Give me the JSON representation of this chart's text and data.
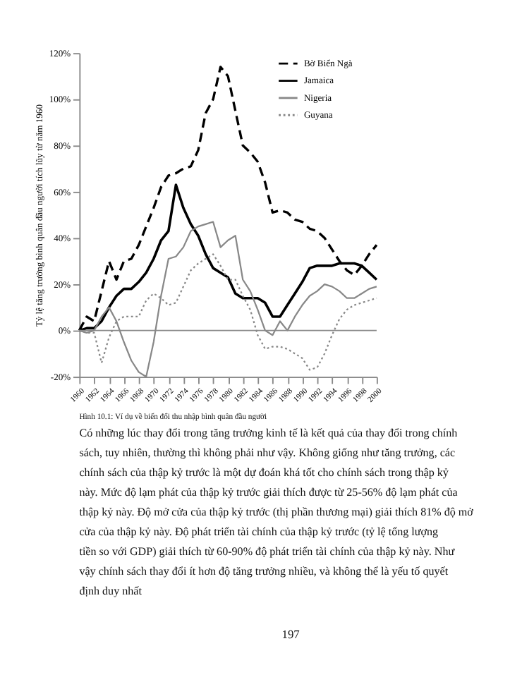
{
  "chart_data": {
    "type": "line",
    "ylabel": "Tỷ lệ tăng trưởng bình quân đầu người tích lũy từ năm 1960",
    "x": [
      1960,
      1961,
      1962,
      1963,
      1964,
      1965,
      1966,
      1967,
      1968,
      1969,
      1970,
      1971,
      1972,
      1973,
      1974,
      1975,
      1976,
      1977,
      1978,
      1979,
      1980,
      1981,
      1982,
      1983,
      1984,
      1985,
      1986,
      1987,
      1988,
      1989,
      1990,
      1991,
      1992,
      1993,
      1994,
      1995,
      1996,
      1997,
      1998,
      1999,
      2000
    ],
    "series": [
      {
        "name": "Bờ Biển Ngà",
        "color": "#000000",
        "line_style": "dashed",
        "values": [
          0,
          6,
          4,
          17,
          30,
          22,
          30,
          31,
          37,
          45,
          53,
          62,
          67,
          68,
          70,
          71,
          78,
          94,
          100,
          114,
          110,
          95,
          80,
          77,
          73,
          64,
          51,
          52,
          51,
          48,
          47,
          44,
          43,
          40,
          35,
          30,
          26,
          24,
          28,
          33,
          37
        ]
      },
      {
        "name": "Jamaica",
        "color": "#000000",
        "line_style": "solid",
        "values": [
          0,
          1,
          1,
          4,
          10,
          15,
          18,
          18,
          21,
          25,
          31,
          39,
          43,
          63,
          53,
          46,
          41,
          33,
          27,
          25,
          23,
          16,
          14,
          14,
          14,
          12,
          6,
          6,
          11,
          16,
          21,
          27,
          28,
          28,
          28,
          29,
          29,
          29,
          28,
          25,
          22
        ]
      },
      {
        "name": "Nigeria",
        "color": "#888888",
        "line_style": "solid",
        "values": [
          0,
          -1,
          0,
          6,
          10,
          4,
          -5,
          -13,
          -18,
          -20,
          -5,
          15,
          31,
          32,
          36,
          43,
          45,
          46,
          47,
          36,
          39,
          41,
          22,
          17,
          9,
          0,
          -2,
          4,
          0,
          6,
          11,
          15,
          17,
          20,
          19,
          17,
          14,
          14,
          16,
          18,
          19
        ]
      },
      {
        "name": "Guyana",
        "color": "#888888",
        "line_style": "dotted",
        "values": [
          0,
          -1,
          -1,
          -14,
          -3,
          4,
          6,
          6,
          6,
          13,
          16,
          14,
          11,
          12,
          19,
          26,
          29,
          31,
          33,
          28,
          22,
          22,
          15,
          9,
          -2,
          -8,
          -7,
          -7,
          -8,
          -10,
          -12,
          -17,
          -16,
          -10,
          -2,
          5,
          9,
          11,
          12,
          13,
          14
        ]
      }
    ],
    "xlim": [
      1960,
      2000
    ],
    "xticks": [
      1960,
      1962,
      1964,
      1966,
      1968,
      1970,
      1972,
      1974,
      1976,
      1978,
      1980,
      1982,
      1984,
      1986,
      1988,
      1990,
      1992,
      1994,
      1996,
      1998,
      2000
    ],
    "ylim": [
      -20,
      120
    ],
    "yticks": [
      {
        "value": -20,
        "label": "-20%"
      },
      {
        "value": 0,
        "label": "0%"
      },
      {
        "value": 20,
        "label": "20%"
      },
      {
        "value": 40,
        "label": "40%"
      },
      {
        "value": 60,
        "label": "60%"
      },
      {
        "value": 80,
        "label": "80%"
      },
      {
        "value": 100,
        "label": "100%"
      },
      {
        "value": 120,
        "label": "120%"
      }
    ],
    "ref_lines": [
      {
        "axis": "y",
        "value": 0,
        "color": "#888888"
      }
    ],
    "legend": "top right",
    "grid": false,
    "annotations": [
      "Hình 10.1: Ví dụ về biến đổi thu nhập bình quân đầu người",
      "Có những lúc thay đổi trong tăng trưởng kinh tế là kết quả của thay đổi trong chính sách, tuy nhiên, thường thì không phải như vậy. Không giống như tăng trưởng, các chính sách của thập kỷ trước là một dự đoán khá tốt cho chính sách trong thập kỷ này. Mức độ lạm phát của thập kỷ trước giải thích được từ 25-56% độ lạm phát của thập kỷ này. Độ mở cửa của thập kỷ trước (thị phần thương mại) giải thích 81% độ mở cửa của thập kỷ này. Độ phát triển tài chính của thập kỷ trước (tỷ lệ tổng lượng tiền so với GDP) giải thích từ 60-90% độ phát triển tài chính của thập kỷ này. Như vậy chính sách thay đổi ít hơn độ tăng trưởng nhiều, và không thể là yếu tố quyết định duy nhất",
      "197"
    ]
  }
}
